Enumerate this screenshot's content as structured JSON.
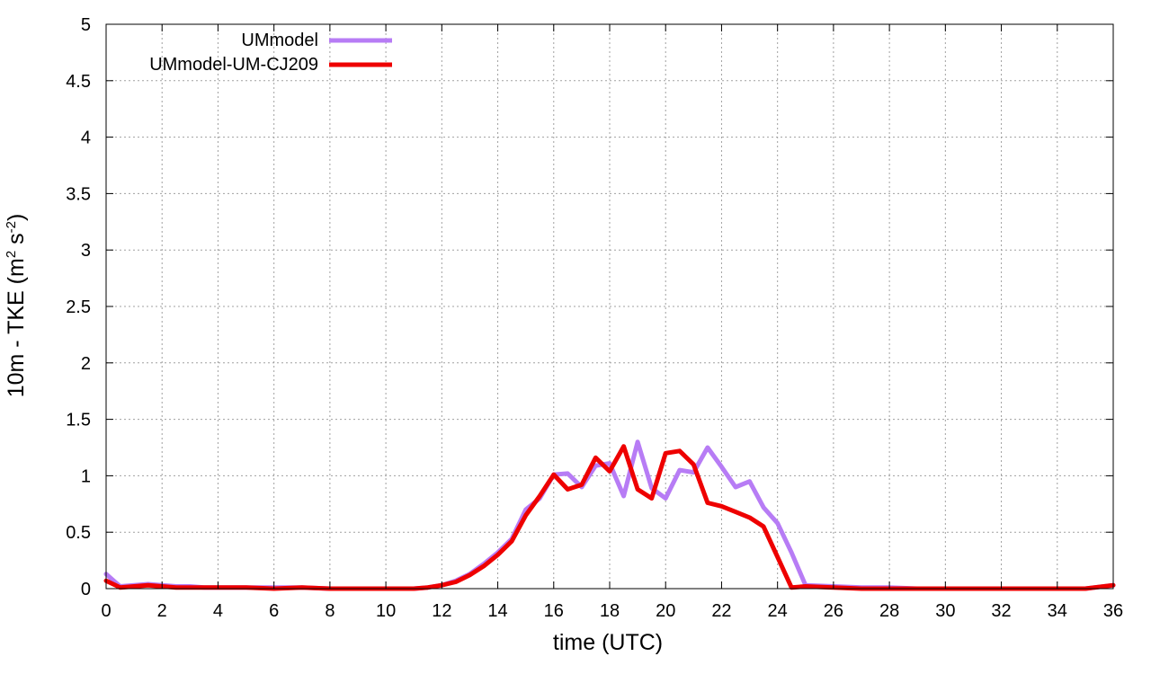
{
  "chart_data": {
    "type": "line",
    "title": "",
    "xlabel": "time (UTC)",
    "ylabel": {
      "prefix": "10m - TKE (m",
      "exp1": "2",
      "mid": " s",
      "exp2": "-2",
      "suffix": ")"
    },
    "xlim": [
      0,
      36
    ],
    "ylim": [
      0,
      5
    ],
    "xticks": [
      0,
      2,
      4,
      6,
      8,
      10,
      12,
      14,
      16,
      18,
      20,
      22,
      24,
      26,
      28,
      30,
      32,
      34,
      36
    ],
    "yticks": [
      0,
      0.5,
      1,
      1.5,
      2,
      2.5,
      3,
      3.5,
      4,
      4.5,
      5
    ],
    "ytick_labels": [
      "0",
      "0.5",
      "1",
      "1.5",
      "2",
      "2.5",
      "3",
      "3.5",
      "4",
      "4.5",
      "5"
    ],
    "grid": true,
    "legend_position": "top-left",
    "series": [
      {
        "name": "UMmodel",
        "color": "#b77cf5",
        "x": [
          0,
          0.5,
          1,
          1.5,
          2,
          2.5,
          3,
          3.5,
          4,
          5,
          6,
          7,
          8,
          9,
          10,
          11,
          11.5,
          12,
          12.5,
          13,
          13.5,
          14,
          14.5,
          15,
          15.5,
          16,
          16.5,
          17,
          17.5,
          18,
          18.5,
          19,
          19.5,
          20,
          20.5,
          21,
          21.5,
          22,
          22.5,
          23,
          23.5,
          24,
          24.5,
          25,
          26,
          27,
          28,
          29,
          30,
          31,
          32,
          33,
          34,
          35,
          36
        ],
        "y": [
          0.13,
          0.02,
          0.03,
          0.04,
          0.03,
          0.02,
          0.02,
          0.01,
          0.01,
          0.01,
          0.01,
          0.01,
          0.0,
          0.0,
          0.0,
          0.0,
          0.01,
          0.03,
          0.07,
          0.13,
          0.22,
          0.32,
          0.44,
          0.7,
          0.8,
          1.01,
          1.02,
          0.9,
          1.09,
          1.11,
          0.82,
          1.3,
          0.89,
          0.8,
          1.05,
          1.03,
          1.25,
          1.08,
          0.9,
          0.95,
          0.72,
          0.58,
          0.32,
          0.03,
          0.02,
          0.01,
          0.01,
          0.0,
          0.0,
          0.0,
          0.0,
          0.0,
          0.0,
          0.0,
          0.03
        ]
      },
      {
        "name": "UMmodel-UM-CJ209",
        "color": "#ee0000",
        "x": [
          0,
          0.5,
          1,
          1.5,
          2,
          2.5,
          3,
          3.5,
          4,
          5,
          6,
          7,
          8,
          9,
          10,
          11,
          11.5,
          12,
          12.5,
          13,
          13.5,
          14,
          14.5,
          15,
          15.5,
          16,
          16.5,
          17,
          17.5,
          18,
          18.5,
          19,
          19.5,
          20,
          20.5,
          21,
          21.5,
          22,
          22.5,
          23,
          23.5,
          24,
          24.5,
          25,
          26,
          27,
          28,
          29,
          30,
          31,
          32,
          33,
          34,
          35,
          36
        ],
        "y": [
          0.07,
          0.01,
          0.02,
          0.03,
          0.02,
          0.01,
          0.01,
          0.01,
          0.01,
          0.01,
          0.0,
          0.01,
          0.0,
          0.0,
          0.0,
          0.0,
          0.01,
          0.03,
          0.06,
          0.12,
          0.2,
          0.3,
          0.42,
          0.65,
          0.82,
          1.01,
          0.88,
          0.92,
          1.16,
          1.04,
          1.26,
          0.88,
          0.8,
          1.2,
          1.22,
          1.1,
          0.76,
          0.73,
          0.68,
          0.63,
          0.55,
          0.28,
          0.01,
          0.02,
          0.01,
          0.0,
          0.0,
          0.0,
          0.0,
          0.0,
          0.0,
          0.0,
          0.0,
          0.0,
          0.03
        ]
      }
    ]
  }
}
